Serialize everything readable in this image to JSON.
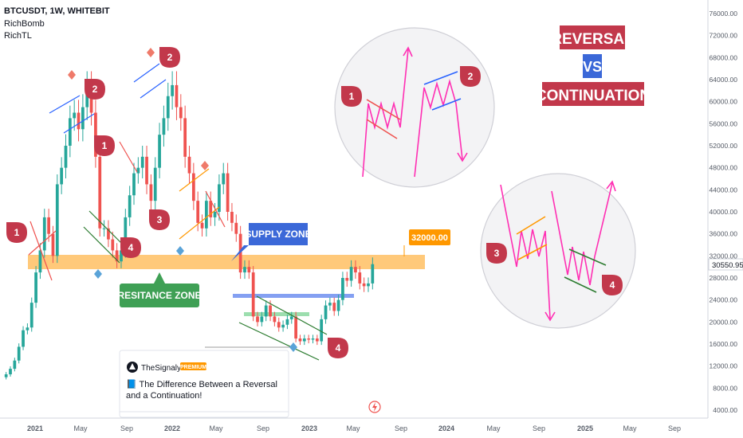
{
  "header": {
    "symbol": "BTCUSDT, 1W, WHITEBIT",
    "indicators": [
      "RichBomb",
      "RichTL"
    ]
  },
  "price_axis": {
    "ticks": [
      "76000.00",
      "72000.00",
      "68000.00",
      "64000.00",
      "60000.00",
      "56000.00",
      "52000.00",
      "48000.00",
      "44000.00",
      "40000.00",
      "36000.00",
      "32000.00",
      "28000.00",
      "24000.00",
      "20000.00",
      "16000.00",
      "12000.00",
      "8000.00",
      "4000.00"
    ],
    "current_price": "30550.95"
  },
  "time_axis": {
    "ticks": [
      "2021",
      "May",
      "Sep",
      "2022",
      "May",
      "Sep",
      "2023",
      "May",
      "Sep",
      "2024",
      "May",
      "Sep",
      "2025",
      "May",
      "Sep"
    ]
  },
  "title_box": {
    "line1": "REVERSAL",
    "line2": "VS",
    "line3": "CONTINUATION"
  },
  "annotations": {
    "supply_zone": "SUPPLY ZONE",
    "resistance_zone": "RESITANCE ZONE",
    "price_label": "32000.00",
    "markers": [
      "1",
      "2",
      "1",
      "2",
      "3",
      "4",
      "4",
      "1",
      "2",
      "3",
      "4"
    ]
  },
  "card": {
    "author": "TheSignalyst",
    "badge": "PREMIUM",
    "title": "📘 The Difference Between a Reversal and a Continuation!"
  },
  "colors": {
    "bull": "#26a69a",
    "bear": "#ef5350",
    "zone": "#ffb74d",
    "marker": "#c2384b",
    "supply_blue": "#3b68d8",
    "resistance_green": "#3fa055",
    "magenta": "#ff2fb3"
  },
  "chart_data": {
    "type": "candlestick",
    "x_range": [
      "2020-09",
      "2025-12"
    ],
    "ylim": [
      4000,
      76000
    ],
    "closes_weekly_approx": [
      10500,
      11500,
      13000,
      15500,
      18500,
      19000,
      23500,
      29000,
      33000,
      39000,
      36000,
      32000,
      45000,
      48000,
      52000,
      57000,
      58000,
      55000,
      59000,
      63000,
      58000,
      50000,
      37000,
      37000,
      35000,
      33000,
      31000,
      33000,
      39000,
      43000,
      47000,
      48000,
      50000,
      45000,
      42000,
      48000,
      54000,
      57000,
      61000,
      63000,
      59000,
      57000,
      50000,
      47000,
      42000,
      38000,
      37000,
      42000,
      39000,
      40000,
      45000,
      47000,
      40000,
      38000,
      36000,
      29000,
      30000,
      29000,
      21000,
      20000,
      21000,
      23000,
      21000,
      20000,
      19000,
      19500,
      20500,
      21000,
      17000,
      16500,
      17000,
      16800,
      17000,
      16500,
      20500,
      23000,
      23500,
      22000,
      24000,
      28000,
      27500,
      30000,
      29000,
      27000,
      26500,
      27000,
      30500
    ],
    "resistance_zone": [
      29000,
      32000
    ],
    "supply_zone_level": 24700,
    "price_label_level": 32000,
    "current_price": 30550.95
  }
}
